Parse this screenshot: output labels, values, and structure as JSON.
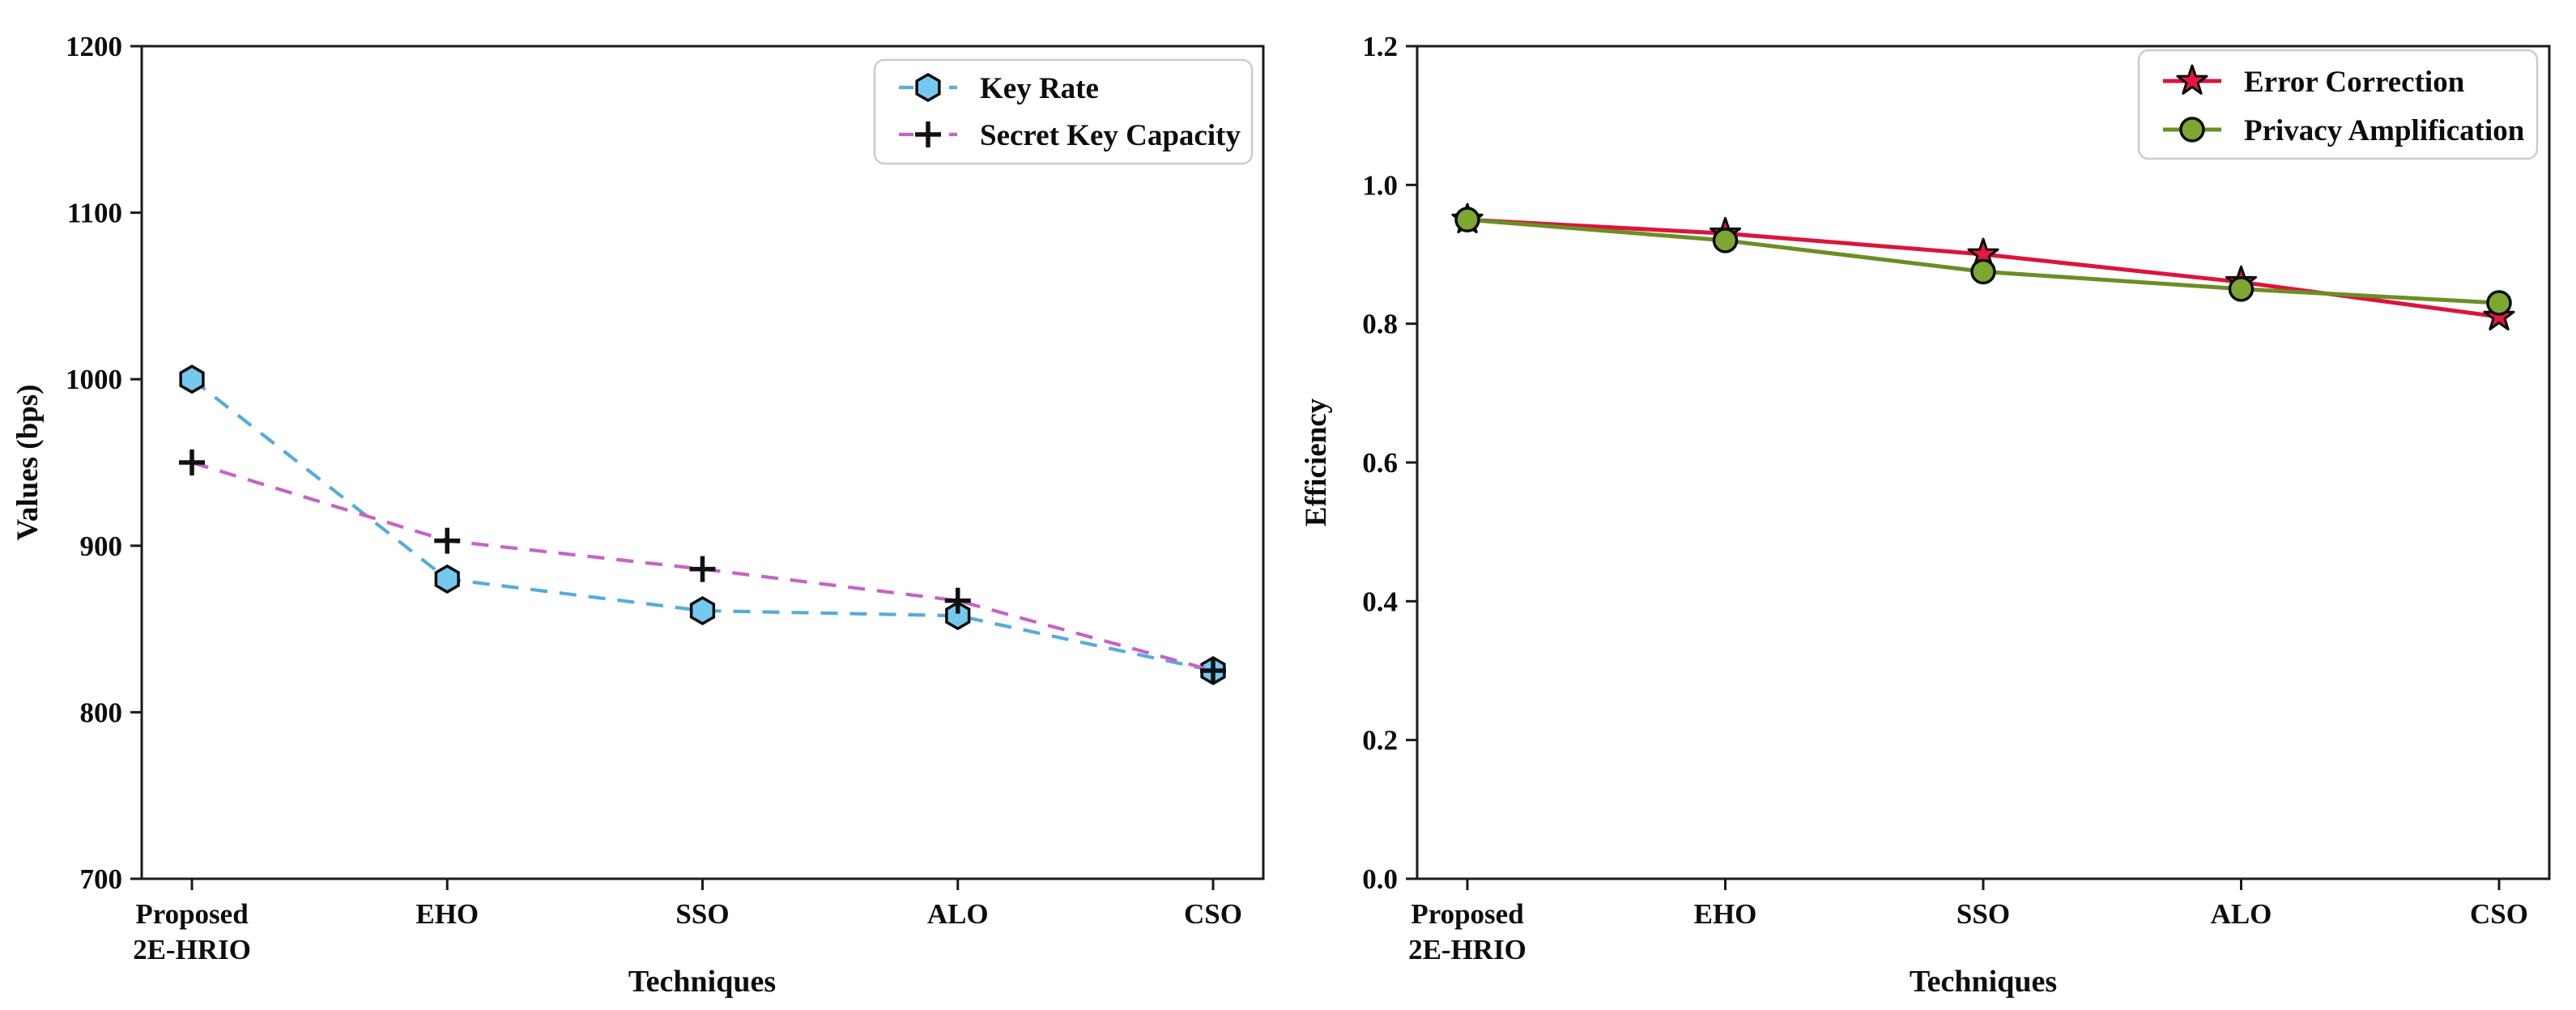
{
  "figure": {
    "background": "#ffffff",
    "frame_color": "#1a1a1a",
    "text_color": "#0d0d0d",
    "legend_border_color": "#cccccc"
  },
  "chart_data": [
    {
      "id": "values",
      "type": "line",
      "title": "",
      "xlabel": "Techniques",
      "ylabel": "Values (bps)",
      "categories": [
        "Proposed 2E-HRIO",
        "EHO",
        "SSO",
        "ALO",
        "CSO"
      ],
      "category_label_lines": [
        [
          "Proposed",
          "2E-HRIO"
        ],
        [
          "EHO"
        ],
        [
          "SSO"
        ],
        [
          "ALO"
        ],
        [
          "CSO"
        ]
      ],
      "ylim": [
        700,
        1200
      ],
      "yticks": [
        700,
        800,
        900,
        1000,
        1100,
        1200
      ],
      "ytick_labels": [
        "700",
        "800",
        "900",
        "1000",
        "1100",
        "1200"
      ],
      "grid": false,
      "legend_position": "upper right",
      "series": [
        {
          "name": "Key Rate",
          "values": [
            1000,
            880,
            861,
            858,
            825
          ],
          "color": "#55ACDB",
          "linestyle": "dashed",
          "marker": "hexagon",
          "marker_fill": "#74C9EE",
          "marker_edge": "#0b0b0b"
        },
        {
          "name": "Secret Key Capacity",
          "values": [
            950,
            903,
            886,
            867,
            825
          ],
          "color": "#C763C5",
          "linestyle": "dashed",
          "marker": "plus",
          "marker_fill": "#111111",
          "marker_edge": "#111111"
        }
      ]
    },
    {
      "id": "efficiency",
      "type": "line",
      "title": "",
      "xlabel": "Techniques",
      "ylabel": "Efficiency",
      "categories": [
        "Proposed 2E-HRIO",
        "EHO",
        "SSO",
        "ALO",
        "CSO"
      ],
      "category_label_lines": [
        [
          "Proposed",
          "2E-HRIO"
        ],
        [
          "EHO"
        ],
        [
          "SSO"
        ],
        [
          "ALO"
        ],
        [
          "CSO"
        ]
      ],
      "ylim": [
        0.0,
        1.2
      ],
      "yticks": [
        0.0,
        0.2,
        0.4,
        0.6,
        0.8,
        1.0,
        1.2
      ],
      "ytick_labels": [
        "0.0",
        "0.2",
        "0.4",
        "0.6",
        "0.8",
        "1.0",
        "1.2"
      ],
      "grid": false,
      "legend_position": "upper right",
      "series": [
        {
          "name": "Error Correction",
          "values": [
            0.95,
            0.93,
            0.9,
            0.86,
            0.81
          ],
          "color": "#DC143C",
          "linestyle": "solid",
          "marker": "star",
          "marker_fill": "#E8173D",
          "marker_edge": "#0b0b0b"
        },
        {
          "name": "Privacy Amplification",
          "values": [
            0.95,
            0.92,
            0.875,
            0.85,
            0.83
          ],
          "color": "#6B8E23",
          "linestyle": "solid",
          "marker": "circle",
          "marker_fill": "#7CA832",
          "marker_edge": "#0b0b0b"
        }
      ]
    }
  ]
}
